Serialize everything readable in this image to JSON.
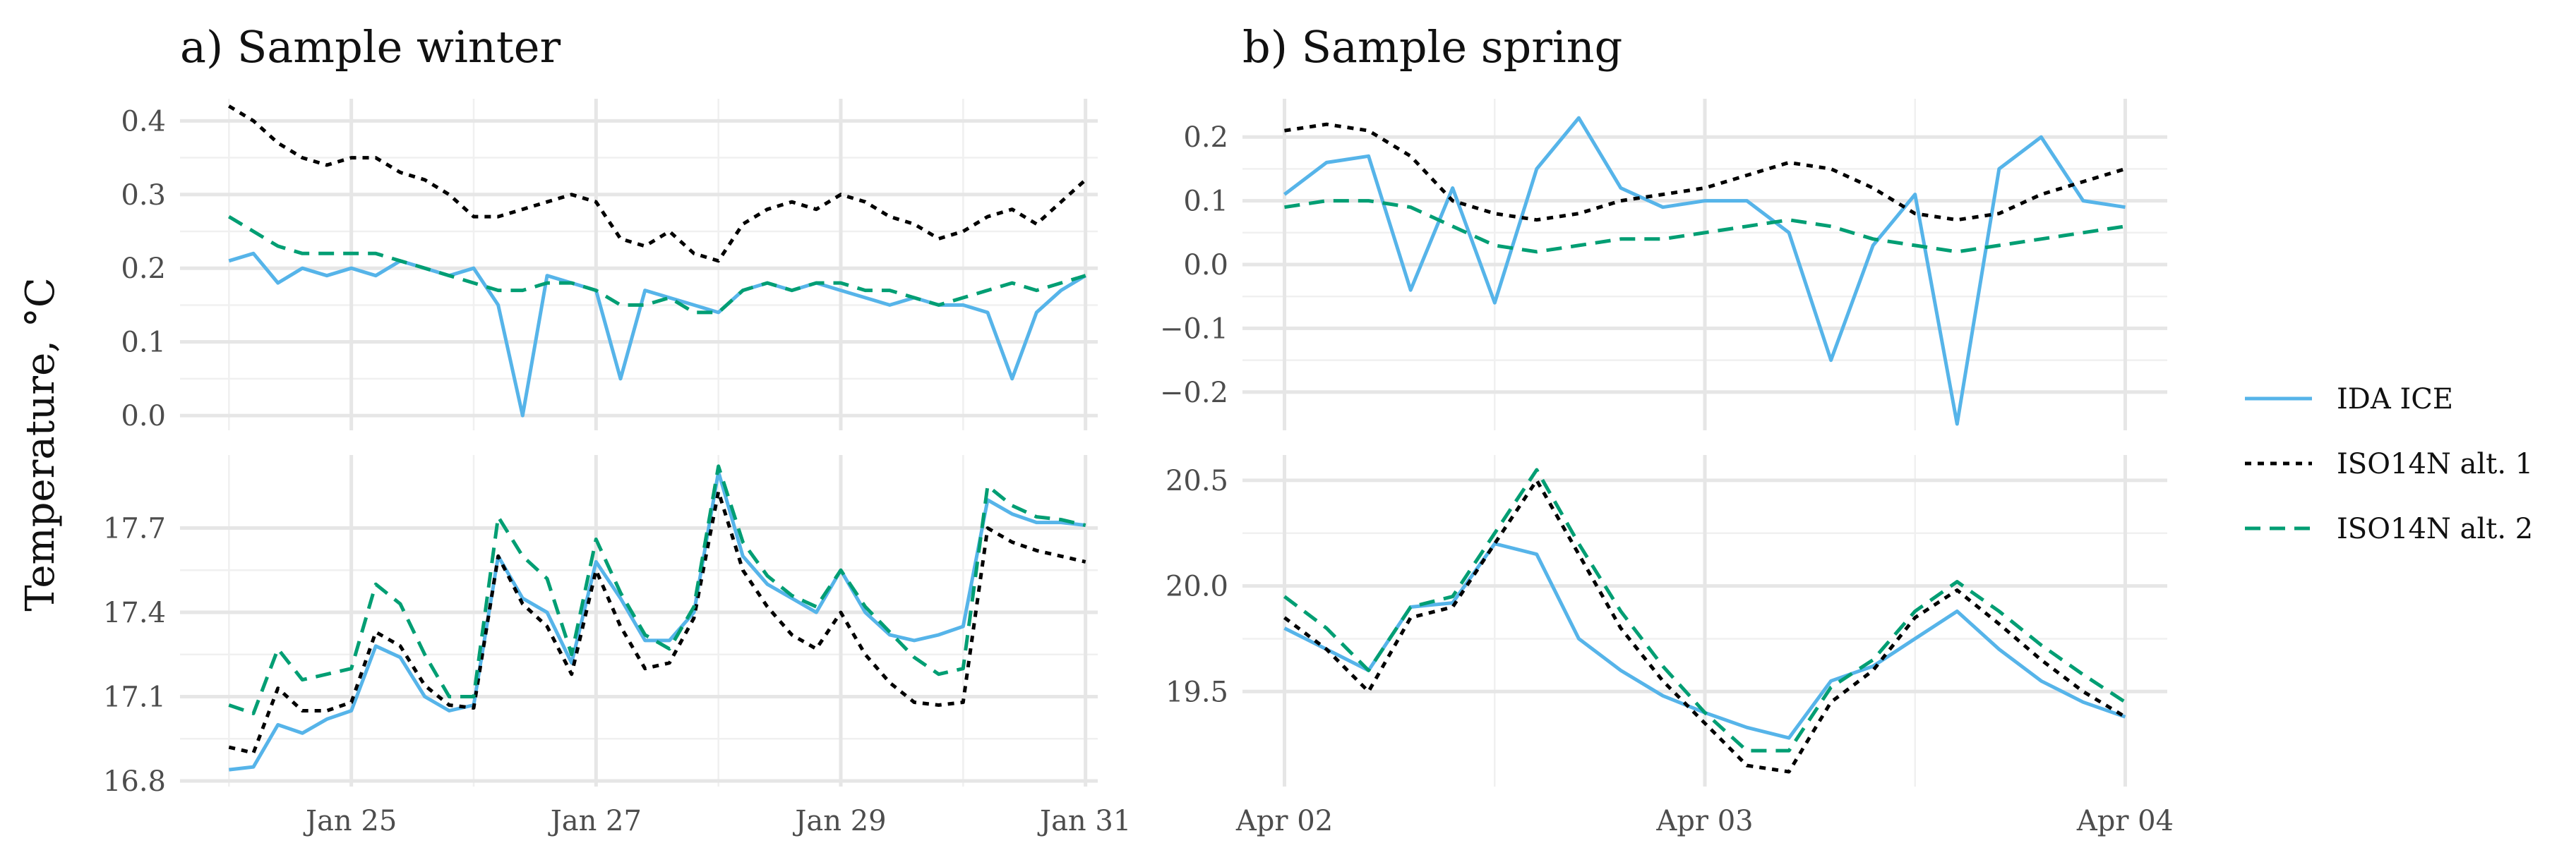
{
  "colors": {
    "ida_ice": "#56B4E9",
    "iso_alt1": "#000000",
    "iso_alt2": "#009E73"
  },
  "y_axis_label": "Temperature, °C",
  "legend": {
    "entries": [
      {
        "label": "IDA ICE",
        "series": "ida_ice",
        "dash": "solid"
      },
      {
        "label": "ISO14N alt. 1",
        "series": "iso_alt1",
        "dash": "dotted"
      },
      {
        "label": "ISO14N alt. 2",
        "series": "iso_alt2",
        "dash": "dashed"
      }
    ]
  },
  "chart_data": [
    {
      "id": "winter-top",
      "type": "line",
      "title": "a) Sample winter",
      "x": [
        24.0,
        24.2,
        24.4,
        24.6,
        24.8,
        25.0,
        25.2,
        25.4,
        25.6,
        25.8,
        26.0,
        26.2,
        26.4,
        26.6,
        26.8,
        27.0,
        27.2,
        27.4,
        27.6,
        27.8,
        28.0,
        28.2,
        28.4,
        28.6,
        28.8,
        29.0,
        29.2,
        29.4,
        29.6,
        29.8,
        30.0,
        30.2,
        30.4,
        30.6,
        30.8,
        31.0
      ],
      "x_ticks": [
        {
          "value": 25,
          "label": "Jan 25"
        },
        {
          "value": 27,
          "label": "Jan 27"
        },
        {
          "value": 29,
          "label": "Jan 29"
        },
        {
          "value": 31,
          "label": "Jan 31"
        }
      ],
      "xlim": [
        23.6,
        31.1
      ],
      "ylim": [
        -0.02,
        0.43
      ],
      "y_ticks": [
        {
          "value": 0.0,
          "label": "0.0"
        },
        {
          "value": 0.1,
          "label": "0.1"
        },
        {
          "value": 0.2,
          "label": "0.2"
        },
        {
          "value": 0.3,
          "label": "0.3"
        },
        {
          "value": 0.4,
          "label": "0.4"
        }
      ],
      "series": [
        {
          "name": "IDA ICE",
          "key": "ida_ice",
          "values": [
            0.21,
            0.22,
            0.18,
            0.2,
            0.19,
            0.2,
            0.19,
            0.21,
            0.2,
            0.19,
            0.2,
            0.15,
            0.0,
            0.19,
            0.18,
            0.17,
            0.05,
            0.17,
            0.16,
            0.15,
            0.14,
            0.17,
            0.18,
            0.17,
            0.18,
            0.17,
            0.16,
            0.15,
            0.16,
            0.15,
            0.15,
            0.14,
            0.05,
            0.14,
            0.17,
            0.19
          ]
        },
        {
          "name": "ISO14N alt. 1",
          "key": "iso_alt1",
          "values": [
            0.42,
            0.4,
            0.37,
            0.35,
            0.34,
            0.35,
            0.35,
            0.33,
            0.32,
            0.3,
            0.27,
            0.27,
            0.28,
            0.29,
            0.3,
            0.29,
            0.24,
            0.23,
            0.25,
            0.22,
            0.21,
            0.26,
            0.28,
            0.29,
            0.28,
            0.3,
            0.29,
            0.27,
            0.26,
            0.24,
            0.25,
            0.27,
            0.28,
            0.26,
            0.29,
            0.32
          ]
        },
        {
          "name": "ISO14N alt. 2",
          "key": "iso_alt2",
          "values": [
            0.27,
            0.25,
            0.23,
            0.22,
            0.22,
            0.22,
            0.22,
            0.21,
            0.2,
            0.19,
            0.18,
            0.17,
            0.17,
            0.18,
            0.18,
            0.17,
            0.15,
            0.15,
            0.16,
            0.14,
            0.14,
            0.17,
            0.18,
            0.17,
            0.18,
            0.18,
            0.17,
            0.17,
            0.16,
            0.15,
            0.16,
            0.17,
            0.18,
            0.17,
            0.18,
            0.19
          ]
        }
      ]
    },
    {
      "id": "winter-bottom",
      "type": "line",
      "title": "",
      "x": [
        24.0,
        24.2,
        24.4,
        24.6,
        24.8,
        25.0,
        25.2,
        25.4,
        25.6,
        25.8,
        26.0,
        26.2,
        26.4,
        26.6,
        26.8,
        27.0,
        27.2,
        27.4,
        27.6,
        27.8,
        28.0,
        28.2,
        28.4,
        28.6,
        28.8,
        29.0,
        29.2,
        29.4,
        29.6,
        29.8,
        30.0,
        30.2,
        30.4,
        30.6,
        30.8,
        31.0
      ],
      "x_ticks": [
        {
          "value": 25,
          "label": "Jan 25"
        },
        {
          "value": 27,
          "label": "Jan 27"
        },
        {
          "value": 29,
          "label": "Jan 29"
        },
        {
          "value": 31,
          "label": "Jan 31"
        }
      ],
      "xlim": [
        23.6,
        31.1
      ],
      "ylim": [
        16.78,
        17.96
      ],
      "y_ticks": [
        {
          "value": 16.8,
          "label": "16.8"
        },
        {
          "value": 17.1,
          "label": "17.1"
        },
        {
          "value": 17.4,
          "label": "17.4"
        },
        {
          "value": 17.7,
          "label": "17.7"
        }
      ],
      "series": [
        {
          "name": "IDA ICE",
          "key": "ida_ice",
          "values": [
            16.84,
            16.85,
            17.0,
            16.97,
            17.02,
            17.05,
            17.28,
            17.24,
            17.1,
            17.05,
            17.07,
            17.6,
            17.45,
            17.4,
            17.22,
            17.58,
            17.45,
            17.3,
            17.3,
            17.4,
            17.9,
            17.6,
            17.5,
            17.45,
            17.4,
            17.55,
            17.4,
            17.32,
            17.3,
            17.32,
            17.35,
            17.8,
            17.75,
            17.72,
            17.72,
            17.71
          ]
        },
        {
          "name": "ISO14N alt. 1",
          "key": "iso_alt1",
          "values": [
            16.92,
            16.9,
            17.13,
            17.05,
            17.05,
            17.08,
            17.33,
            17.28,
            17.14,
            17.07,
            17.06,
            17.6,
            17.43,
            17.35,
            17.18,
            17.55,
            17.35,
            17.2,
            17.22,
            17.38,
            17.83,
            17.55,
            17.42,
            17.32,
            17.27,
            17.4,
            17.25,
            17.15,
            17.08,
            17.07,
            17.08,
            17.7,
            17.65,
            17.62,
            17.6,
            17.58
          ]
        },
        {
          "name": "ISO14N alt. 2",
          "key": "iso_alt2",
          "values": [
            17.07,
            17.04,
            17.27,
            17.16,
            17.18,
            17.2,
            17.5,
            17.43,
            17.25,
            17.1,
            17.1,
            17.74,
            17.6,
            17.52,
            17.25,
            17.66,
            17.47,
            17.32,
            17.27,
            17.42,
            17.92,
            17.65,
            17.53,
            17.46,
            17.42,
            17.55,
            17.42,
            17.33,
            17.24,
            17.18,
            17.2,
            17.85,
            17.78,
            17.74,
            17.73,
            17.71
          ]
        }
      ]
    },
    {
      "id": "spring-top",
      "type": "line",
      "title": "b) Sample spring",
      "x": [
        0.0,
        0.1,
        0.2,
        0.3,
        0.4,
        0.5,
        0.6,
        0.7,
        0.8,
        0.9,
        1.0,
        1.1,
        1.2,
        1.3,
        1.4,
        1.5,
        1.6,
        1.7,
        1.8,
        1.9,
        2.0
      ],
      "x_ticks": [
        {
          "value": 0,
          "label": "Apr 02"
        },
        {
          "value": 1,
          "label": "Apr 03"
        },
        {
          "value": 2,
          "label": "Apr 04"
        }
      ],
      "xlim": [
        -0.1,
        2.1
      ],
      "ylim": [
        -0.26,
        0.26
      ],
      "y_ticks": [
        {
          "value": -0.2,
          "label": "−0.2"
        },
        {
          "value": -0.1,
          "label": "−0.1"
        },
        {
          "value": 0.0,
          "label": "0.0"
        },
        {
          "value": 0.1,
          "label": "0.1"
        },
        {
          "value": 0.2,
          "label": "0.2"
        }
      ],
      "series": [
        {
          "name": "IDA ICE",
          "key": "ida_ice",
          "values": [
            0.11,
            0.16,
            0.17,
            -0.04,
            0.12,
            -0.06,
            0.15,
            0.23,
            0.12,
            0.09,
            0.1,
            0.1,
            0.05,
            -0.15,
            0.03,
            0.11,
            -0.25,
            0.15,
            0.2,
            0.1,
            0.09
          ]
        },
        {
          "name": "ISO14N alt. 1",
          "key": "iso_alt1",
          "values": [
            0.21,
            0.22,
            0.21,
            0.17,
            0.1,
            0.08,
            0.07,
            0.08,
            0.1,
            0.11,
            0.12,
            0.14,
            0.16,
            0.15,
            0.12,
            0.08,
            0.07,
            0.08,
            0.11,
            0.13,
            0.15
          ]
        },
        {
          "name": "ISO14N alt. 2",
          "key": "iso_alt2",
          "values": [
            0.09,
            0.1,
            0.1,
            0.09,
            0.06,
            0.03,
            0.02,
            0.03,
            0.04,
            0.04,
            0.05,
            0.06,
            0.07,
            0.06,
            0.04,
            0.03,
            0.02,
            0.03,
            0.04,
            0.05,
            0.06
          ]
        }
      ]
    },
    {
      "id": "spring-bottom",
      "type": "line",
      "title": "",
      "x": [
        0.0,
        0.1,
        0.2,
        0.3,
        0.4,
        0.5,
        0.6,
        0.7,
        0.8,
        0.9,
        1.0,
        1.1,
        1.2,
        1.3,
        1.4,
        1.5,
        1.6,
        1.7,
        1.8,
        1.9,
        2.0
      ],
      "x_ticks": [
        {
          "value": 0,
          "label": "Apr 02"
        },
        {
          "value": 1,
          "label": "Apr 03"
        },
        {
          "value": 2,
          "label": "Apr 04"
        }
      ],
      "xlim": [
        -0.1,
        2.1
      ],
      "ylim": [
        19.05,
        20.62
      ],
      "y_ticks": [
        {
          "value": 19.5,
          "label": "19.5"
        },
        {
          "value": 20.0,
          "label": "20.0"
        },
        {
          "value": 20.5,
          "label": "20.5"
        }
      ],
      "series": [
        {
          "name": "IDA ICE",
          "key": "ida_ice",
          "values": [
            19.8,
            19.7,
            19.6,
            19.9,
            19.92,
            20.2,
            20.15,
            19.75,
            19.6,
            19.48,
            19.4,
            19.33,
            19.28,
            19.55,
            19.62,
            19.75,
            19.88,
            19.7,
            19.55,
            19.45,
            19.38
          ]
        },
        {
          "name": "ISO14N alt. 1",
          "key": "iso_alt1",
          "values": [
            19.85,
            19.7,
            19.5,
            19.85,
            19.9,
            20.2,
            20.5,
            20.15,
            19.8,
            19.55,
            19.35,
            19.15,
            19.12,
            19.45,
            19.6,
            19.85,
            19.98,
            19.82,
            19.65,
            19.5,
            19.38
          ]
        },
        {
          "name": "ISO14N alt. 2",
          "key": "iso_alt2",
          "values": [
            19.95,
            19.8,
            19.6,
            19.9,
            19.95,
            20.25,
            20.55,
            20.2,
            19.88,
            19.62,
            19.4,
            19.22,
            19.22,
            19.52,
            19.65,
            19.88,
            20.02,
            19.88,
            19.72,
            19.58,
            19.45
          ]
        }
      ]
    }
  ]
}
